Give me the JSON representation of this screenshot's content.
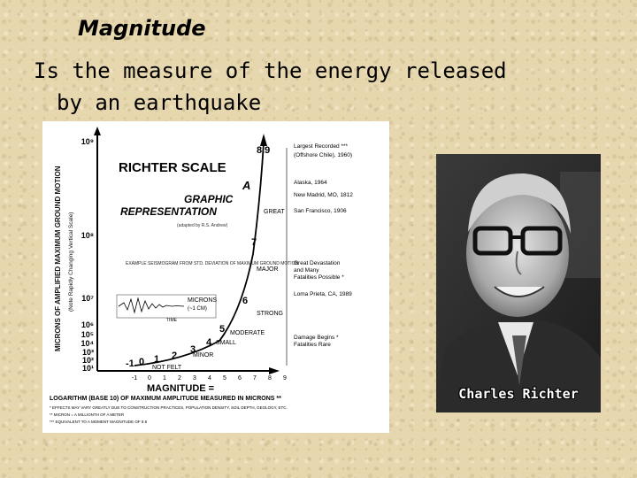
{
  "slide": {
    "title": "Magnitude",
    "definition_line1": "Is the measure of the energy released",
    "definition_line2": "by an earthquake"
  },
  "figure": {
    "heading": "RICHTER SCALE",
    "subheading_1": "A",
    "subheading_2": "GRAPHIC",
    "subheading_3": "REPRESENTATION",
    "credit": "(adapted by R.S. Andrew)",
    "y_axis_label": "MICRONS OF AMPLIFIED MAXIMUM GROUND MOTION",
    "y_axis_sublabel": "(Note Rapidly Changing Vertical Scale)",
    "y_ticks": [
      "10⁹",
      "10⁸",
      "10⁷",
      "10⁶",
      "10⁵",
      "10⁴",
      "10³",
      "10²",
      "10¹"
    ],
    "x_ticks": [
      "-1",
      "0",
      "1",
      "2",
      "3",
      "4",
      "5",
      "6",
      "7",
      "8",
      "9"
    ],
    "x_label": "MAGNITUDE =",
    "x_sublabel": "LOGARITHM (BASE 10) OF MAXIMUM AMPLITUDE MEASURED IN MICRONS **",
    "footnote_1": "* EFFECTS MAY VARY GREATLY DUE TO CONSTRUCTION PRACTICES, POPULATION DENSITY, SOIL DEPTH, GEOLOGY, ETC.",
    "footnote_2": "** MICRON = A MILLIONTH OF A METER",
    "footnote_3": "*** EQUIVALENT TO A MOMENT MAGNITUDE OF 9.5",
    "curve_labels": [
      "-1",
      "0",
      "1",
      "2",
      "3",
      "4",
      "5",
      "6",
      "7",
      "8",
      "8.9"
    ],
    "categories": [
      "NOT FELT",
      "MINOR",
      "SMALL",
      "MODERATE",
      "STRONG",
      "MAJOR",
      "GREAT"
    ],
    "example_text": "EXAMPLE SEISMOGRAM FROM STD. DEVIATION OF MAXIMUM GROUND MOTION",
    "microns_label": "MICRONS",
    "mm_label": "(~1 CM)",
    "time_label": "TIME",
    "events": [
      {
        "name": "Largest Recorded ***",
        "detail": "(Offshore Chile), 1960)"
      },
      {
        "name": "Alaska, 1964",
        "detail": ""
      },
      {
        "name": "New Madrid, MO, 1812",
        "detail": ""
      },
      {
        "name": "San Francisco, 1906",
        "detail": ""
      },
      {
        "name": "Great Devastation",
        "detail": "and Many"
      },
      {
        "name": "Fatalities Possible *",
        "detail": ""
      },
      {
        "name": "Loma Prieta, CA, 1989",
        "detail": ""
      },
      {
        "name": "Damage Begins *",
        "detail": "Fatalities Rare"
      }
    ]
  },
  "photo": {
    "caption": "Charles Richter"
  }
}
